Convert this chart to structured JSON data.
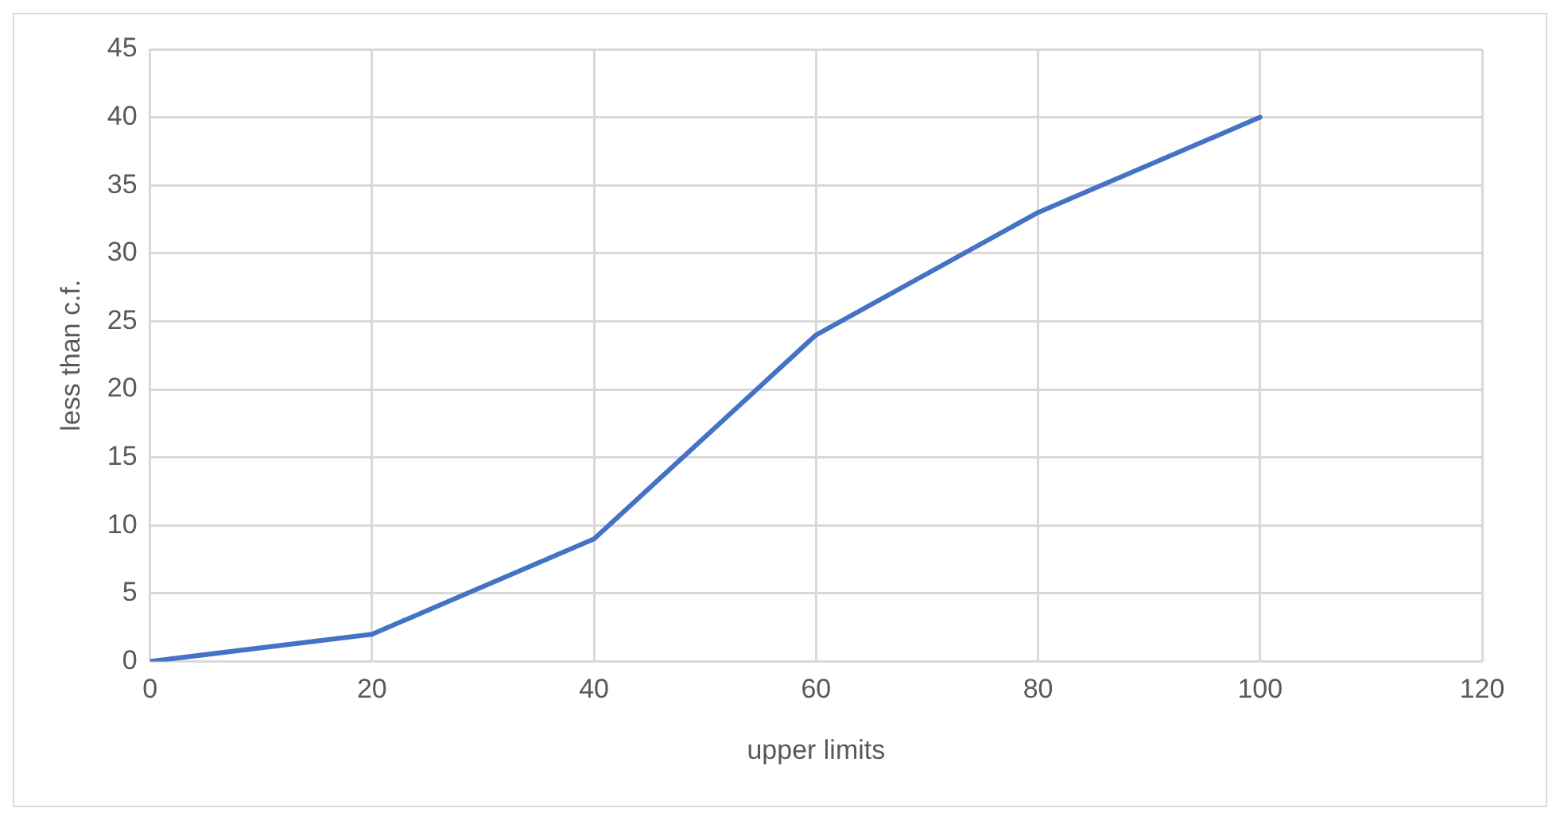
{
  "chart_data": {
    "type": "line",
    "xlabel": "upper limits",
    "ylabel": "less than c.f.",
    "x": [
      0,
      20,
      40,
      60,
      80,
      100
    ],
    "series": [
      {
        "color": "#4472c4",
        "values": [
          0,
          2,
          9,
          24,
          33,
          40
        ]
      }
    ],
    "xlim": [
      0,
      120
    ],
    "xticks": [
      0,
      20,
      40,
      60,
      80,
      100,
      120
    ],
    "ylim": [
      0,
      45
    ],
    "yticks": [
      0,
      5,
      10,
      15,
      20,
      25,
      30,
      35,
      40,
      45
    ],
    "grid": true,
    "legend": false,
    "marker": "none",
    "line_style": "solid"
  }
}
